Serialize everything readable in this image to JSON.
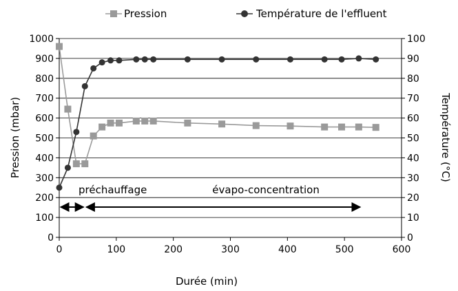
{
  "chart_data": {
    "type": "line",
    "title": "",
    "xlabel": "Durée (min)",
    "ylabel": "Pression (mbar)",
    "y2label": "Température (°C)",
    "xlim": [
      0,
      600
    ],
    "ylim": [
      0,
      1000
    ],
    "y2lim": [
      0,
      100
    ],
    "xticks": [
      "0",
      "100",
      "200",
      "300",
      "400",
      "500",
      "600"
    ],
    "yticks": [
      "0",
      "100",
      "200",
      "300",
      "400",
      "500",
      "600",
      "700",
      "800",
      "900",
      "1000"
    ],
    "y2ticks": [
      "0",
      "10",
      "20",
      "30",
      "40",
      "50",
      "60",
      "70",
      "80",
      "90",
      "100"
    ],
    "grid": "horizontal",
    "legend_position": "top",
    "series": [
      {
        "name": "Pression",
        "axis": "left",
        "marker": "square",
        "color": "#9a9a9a",
        "x": [
          0,
          15,
          30,
          45,
          60,
          75,
          90,
          105,
          135,
          150,
          165,
          225,
          285,
          345,
          405,
          465,
          495,
          525,
          555
        ],
        "y": [
          960,
          645,
          370,
          370,
          510,
          555,
          575,
          575,
          585,
          585,
          585,
          575,
          570,
          562,
          560,
          555,
          555,
          555,
          553
        ]
      },
      {
        "name": "Température de l'effluent",
        "axis": "right",
        "marker": "circle",
        "color": "#333333",
        "x": [
          0,
          15,
          30,
          45,
          60,
          75,
          90,
          105,
          135,
          150,
          165,
          225,
          285,
          345,
          405,
          465,
          495,
          525,
          555
        ],
        "y": [
          25,
          35,
          53,
          76,
          85,
          88,
          89,
          89,
          89.5,
          89.5,
          89.5,
          89.5,
          89.5,
          89.5,
          89.5,
          89.5,
          89.5,
          90,
          89.5
        ]
      }
    ],
    "annotations": [
      {
        "label": "préchauffage",
        "x_start": 0,
        "x_end": 45
      },
      {
        "label": "évapo-concentration",
        "x_start": 45,
        "x_end": 530
      }
    ]
  }
}
